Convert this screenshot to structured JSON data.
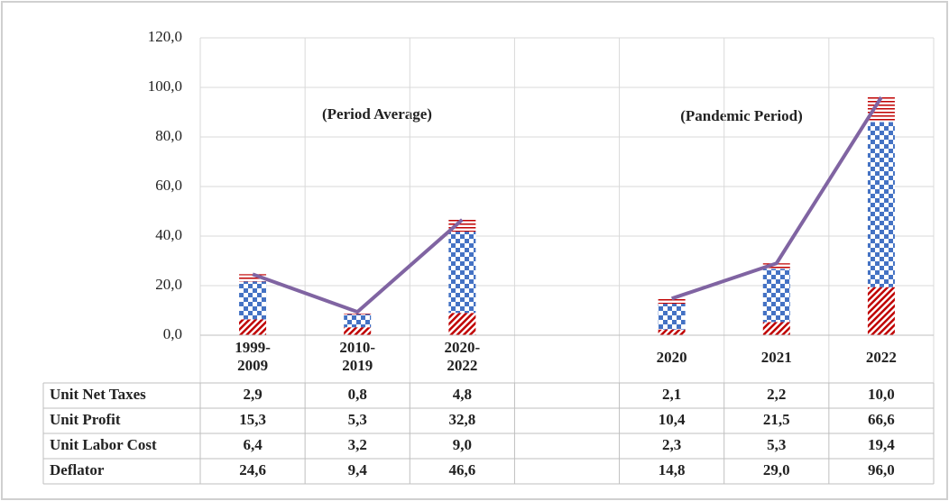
{
  "chart_data": {
    "type": "bar",
    "categories": [
      [
        "1999-",
        "2009"
      ],
      [
        "2010-",
        "2019"
      ],
      [
        "2020-",
        "2022"
      ],
      null,
      [
        "2020"
      ],
      [
        "2021"
      ],
      [
        "2022"
      ]
    ],
    "series": [
      {
        "name": "Unit Net Taxes",
        "color": "#c00000",
        "pattern": "lines",
        "values": [
          2.9,
          0.8,
          4.8,
          null,
          2.1,
          2.2,
          10.0
        ],
        "value_labels": [
          "2,9",
          "0,8",
          "4,8",
          null,
          "2,1",
          "2,2",
          "10,0"
        ]
      },
      {
        "name": "Unit Profit",
        "color": "#4472c4",
        "pattern": "checker",
        "values": [
          15.3,
          5.3,
          32.8,
          null,
          10.4,
          21.5,
          66.6
        ],
        "value_labels": [
          "15,3",
          "5,3",
          "32,8",
          null,
          "10,4",
          "21,5",
          "66,6"
        ]
      },
      {
        "name": "Unit Labor Cost",
        "color": "#c00000",
        "pattern": "hatch",
        "values": [
          6.4,
          3.2,
          9.0,
          null,
          2.3,
          5.3,
          19.4
        ],
        "value_labels": [
          "6,4",
          "3,2",
          "9,0",
          null,
          "2,3",
          "5,3",
          "19,4"
        ]
      },
      {
        "name": "Deflator",
        "color": "#8064a2",
        "type": "line",
        "values": [
          24.6,
          9.4,
          46.6,
          null,
          14.8,
          29.0,
          96.0
        ],
        "value_labels": [
          "24,6",
          "9,4",
          "46,6",
          null,
          "14,8",
          "29,0",
          "96,0"
        ]
      }
    ],
    "annotations": [
      "(Period Average)",
      "(Pandemic Period)"
    ],
    "ylim": [
      0,
      120
    ],
    "yticks": [
      {
        "value": 0,
        "label": "0,0"
      },
      {
        "value": 20,
        "label": "20,0"
      },
      {
        "value": 40,
        "label": "40,0"
      },
      {
        "value": 60,
        "label": "60,0"
      },
      {
        "value": 80,
        "label": "80,0"
      },
      {
        "value": 100,
        "label": "100,0"
      },
      {
        "value": 120,
        "label": "120,0"
      }
    ],
    "grid": true
  }
}
